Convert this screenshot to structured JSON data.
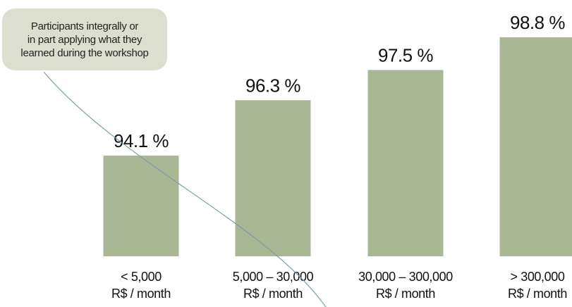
{
  "chart_data": {
    "type": "bar",
    "categories": [
      [
        "< 5,000",
        "R$ / month"
      ],
      [
        "5,000 – 30,000",
        "R$ / month"
      ],
      [
        "30,000 – 300,000",
        "R$ / month"
      ],
      [
        "> 300,000",
        "R$ / month"
      ]
    ],
    "series": [
      {
        "values": [
          94.1,
          96.3,
          97.5,
          98.8
        ],
        "labels": [
          "94.1 %",
          "96.3 %",
          "97.5 %",
          "98.8 %"
        ]
      }
    ],
    "ylim": [
      90.1,
      100
    ],
    "bar_color": "#aab794",
    "grid": false,
    "annotation": "Participants integrally or\nin part applying what they\nlearned during the workshop",
    "annotation_color": "#dcdfcf",
    "leader_line_color": "#7a9ea6"
  }
}
